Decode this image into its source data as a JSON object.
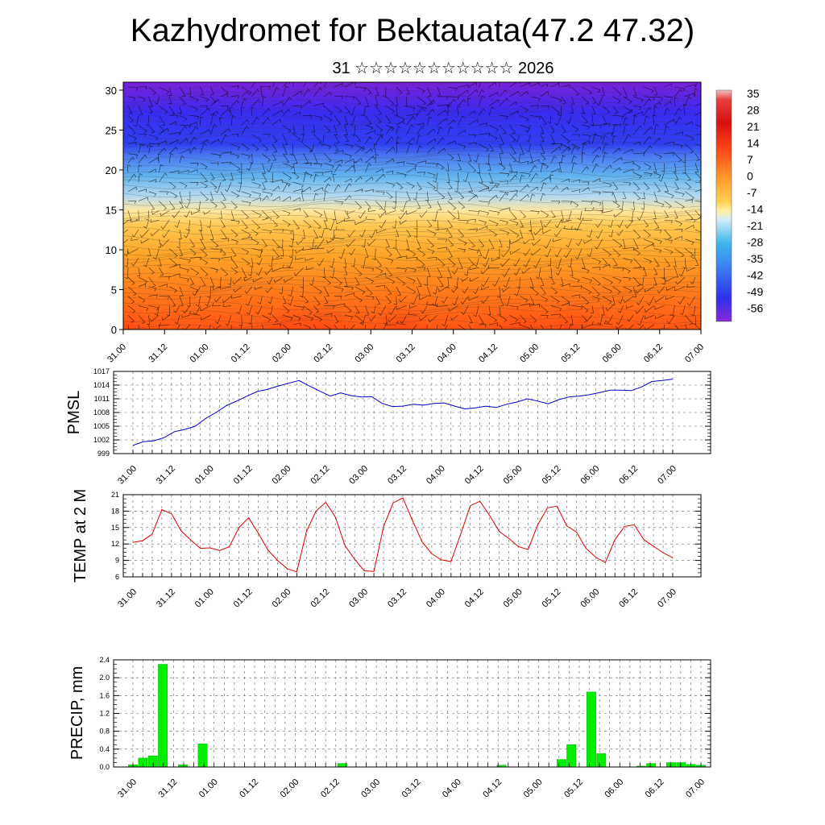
{
  "page": {
    "title": "Kazhydromet for Bektauata(47.2 47.32)",
    "subtitle": "31 ☆☆☆☆☆☆☆☆☆☆☆ 2026"
  },
  "chart_data": [
    {
      "name": "upper-air",
      "type": "heatmap",
      "title": "",
      "xlabel": "",
      "ylabel": "",
      "x_ticks": [
        "31.00",
        "31.12",
        "01.00",
        "01.12",
        "02.00",
        "02.12",
        "03.00",
        "03.12",
        "04.00",
        "04.12",
        "05.00",
        "05.12",
        "06.00",
        "06.12",
        "07.00"
      ],
      "y_ticks": [
        0,
        5,
        10,
        15,
        20,
        25,
        30
      ],
      "ylim": [
        0,
        31
      ],
      "colorbar_labels": [
        "35",
        "28",
        "21",
        "14",
        "7",
        "0",
        "-7",
        "-14",
        "-21",
        "-28",
        "-35",
        "-42",
        "-49",
        "-56"
      ],
      "colorbar_range": [
        -63,
        38
      ],
      "surface_warm_max": 35,
      "warm_spots_x": [
        0.0,
        4.0,
        4.8,
        6.8,
        9.7,
        10.8
      ],
      "field_note": "temperature shaded, wind barbs overlaid"
    },
    {
      "name": "pmsl",
      "type": "line",
      "ylabel": "PMSL",
      "x_ticks": [
        "31.00",
        "31.12",
        "01.00",
        "01.12",
        "02.00",
        "02.12",
        "03.00",
        "03.12",
        "04.00",
        "04.12",
        "05.00",
        "05.12",
        "06.00",
        "06.12",
        "07.00"
      ],
      "y_ticks": [
        999,
        1002,
        1005,
        1008,
        1011,
        1014,
        1017
      ],
      "ylim": [
        999,
        1017
      ],
      "color": "#0000cc",
      "values": [
        1000.8,
        1001.6,
        1001.8,
        1002.5,
        1003.8,
        1004.3,
        1005.0,
        1006.7,
        1008.0,
        1009.5,
        1010.5,
        1011.6,
        1012.6,
        1013.1,
        1013.8,
        1014.4,
        1015.0,
        1013.8,
        1012.7,
        1011.6,
        1012.3,
        1011.7,
        1011.4,
        1011.5,
        1010.0,
        1009.3,
        1009.4,
        1009.8,
        1009.6,
        1010.0,
        1010.1,
        1009.4,
        1008.8,
        1009.0,
        1009.4,
        1009.1,
        1009.8,
        1010.3,
        1011.0,
        1010.5,
        1009.9,
        1010.8,
        1011.4,
        1011.6,
        1011.9,
        1012.4,
        1012.9,
        1012.9,
        1012.8,
        1013.6,
        1014.8,
        1015.0,
        1015.3
      ]
    },
    {
      "name": "temp",
      "type": "line",
      "ylabel": "TEMP at 2 M",
      "x_ticks": [
        "31.00",
        "31.12",
        "01.00",
        "01.12",
        "02.00",
        "02.12",
        "03.00",
        "03.12",
        "04.00",
        "04.12",
        "05.00",
        "05.12",
        "06.00",
        "06.12",
        "07.00"
      ],
      "y_ticks": [
        6,
        9,
        12,
        15,
        18,
        21
      ],
      "ylim": [
        6,
        21
      ],
      "color": "#dd0000",
      "values": [
        12.3,
        12.6,
        13.8,
        18.3,
        17.5,
        14.4,
        12.7,
        11.2,
        11.3,
        10.8,
        11.5,
        15.0,
        16.8,
        14.0,
        10.9,
        9.0,
        7.5,
        6.9,
        14.3,
        18.0,
        19.6,
        16.9,
        11.7,
        9.2,
        7.1,
        7.0,
        15.2,
        19.5,
        20.4,
        16.3,
        12.4,
        10.2,
        9.1,
        8.8,
        13.8,
        19.0,
        19.8,
        17.2,
        14.3,
        13.0,
        11.5,
        11.0,
        15.5,
        18.6,
        18.9,
        15.3,
        14.2,
        11.2,
        9.6,
        8.6,
        12.8,
        15.2,
        15.5,
        12.8,
        11.6,
        10.4,
        9.5
      ]
    },
    {
      "name": "precip",
      "type": "bar",
      "ylabel": "PRECIP, mm",
      "x_ticks": [
        "31.00",
        "31.12",
        "01.00",
        "01.12",
        "02.00",
        "02.12",
        "03.00",
        "03.12",
        "04.00",
        "04.12",
        "05.00",
        "05.12",
        "06.00",
        "06.12",
        "07.00"
      ],
      "y_ticks": [
        "0.0",
        "0.4",
        "0.8",
        "1.2",
        "1.6",
        "2.0",
        "2.4"
      ],
      "ylim": [
        0,
        2.4
      ],
      "color": "#00ee00",
      "values": [
        0.05,
        0.2,
        0.25,
        2.3,
        0,
        0.05,
        0,
        0.52,
        0,
        0,
        0,
        0,
        0,
        0,
        0,
        0,
        0,
        0,
        0,
        0,
        0,
        0.08,
        0,
        0,
        0,
        0,
        0,
        0,
        0,
        0,
        0,
        0,
        0,
        0,
        0,
        0,
        0,
        0.04,
        0,
        0,
        0,
        0,
        0,
        0.17,
        0.5,
        0,
        1.68,
        0.3,
        0,
        0,
        0,
        0.02,
        0.08,
        0,
        0.1,
        0.1,
        0.06,
        0.04
      ]
    }
  ]
}
